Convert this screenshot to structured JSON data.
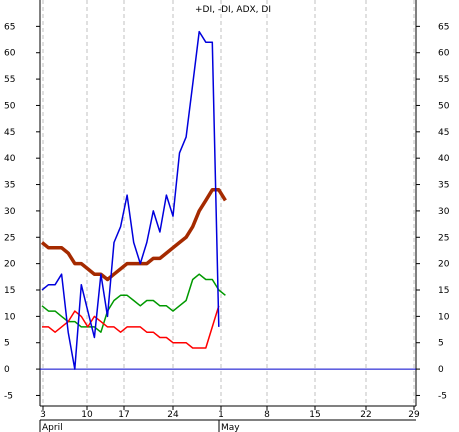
{
  "chart_data": {
    "type": "line",
    "title": "+DI, -DI, ADX, DI",
    "xlabel": "",
    "ylabel": "",
    "ylim": [
      -7,
      70
    ],
    "y_ticks": [
      -5,
      0,
      5,
      10,
      15,
      20,
      25,
      30,
      35,
      40,
      45,
      50,
      55,
      60,
      65
    ],
    "x_tick_labels": [
      "3",
      "10",
      "17",
      "24",
      "1",
      "8",
      "15",
      "22",
      "29"
    ],
    "month_labels": [
      "April",
      "May"
    ],
    "grid": "vertical dashed",
    "zero_line": 0,
    "colors": {
      "plus_di": "#ff0000",
      "minus_di": "#0000dd",
      "adx": "#a52a00",
      "di": "#009900",
      "zero_line": "#0000cc",
      "grid": "#c0c0c0"
    },
    "series": [
      {
        "key": "plus_di",
        "values": [
          8,
          8,
          7,
          8,
          9,
          11,
          10,
          8,
          10,
          9,
          8,
          8,
          7,
          8,
          8,
          8,
          7,
          7,
          6,
          6,
          5,
          5,
          5,
          4,
          4,
          4,
          8,
          12
        ]
      },
      {
        "key": "minus_di",
        "values": [
          15,
          16,
          16,
          18,
          7,
          0,
          16,
          11,
          6,
          18,
          10,
          24,
          27,
          33,
          24,
          20,
          24,
          30,
          26,
          33,
          29,
          41,
          44,
          54,
          64,
          62,
          62,
          8
        ]
      },
      {
        "key": "adx",
        "values": [
          24,
          23,
          23,
          23,
          22,
          20,
          20,
          19,
          18,
          18,
          17,
          18,
          19,
          20,
          20,
          20,
          20,
          21,
          21,
          22,
          23,
          24,
          25,
          27,
          30,
          32,
          34,
          34,
          32
        ]
      },
      {
        "key": "di",
        "values": [
          12,
          11,
          11,
          10,
          9,
          9,
          8,
          8,
          8,
          7,
          11,
          13,
          14,
          14,
          13,
          12,
          13,
          13,
          12,
          12,
          11,
          12,
          13,
          17,
          18,
          17,
          17,
          15,
          14
        ]
      }
    ]
  }
}
